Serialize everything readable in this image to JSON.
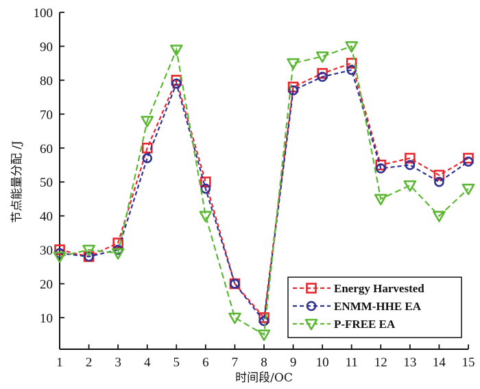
{
  "chart_data": {
    "type": "line",
    "title": "",
    "xlabel": "时间段/OC",
    "ylabel": "节点能量分配 /J",
    "x": [
      1,
      2,
      3,
      4,
      5,
      6,
      7,
      8,
      9,
      10,
      11,
      12,
      13,
      14,
      15
    ],
    "xlim": [
      1,
      15
    ],
    "ylim": [
      1,
      100
    ],
    "xticks": [
      "1",
      "2",
      "3",
      "4",
      "5",
      "6",
      "7",
      "8",
      "9",
      "10",
      "11",
      "12",
      "13",
      "14",
      "15"
    ],
    "yticks": [
      "10",
      "20",
      "30",
      "40",
      "50",
      "60",
      "70",
      "80",
      "90",
      "100"
    ],
    "ytick_values": [
      10,
      20,
      30,
      40,
      50,
      60,
      70,
      80,
      90,
      100
    ],
    "grid": false,
    "legend_position": "bottom-right",
    "series": [
      {
        "name": "Energy Harvested",
        "color": "#e8262b",
        "marker": "square",
        "linestyle": "dashed",
        "values": [
          30,
          28,
          32,
          60,
          80,
          50,
          20,
          10,
          78,
          82,
          85,
          55,
          57,
          52,
          57
        ]
      },
      {
        "name": "ENMM-HHE EA",
        "color": "#2e3192",
        "marker": "circle",
        "linestyle": "dashed",
        "values": [
          29,
          28,
          30,
          57,
          79,
          48,
          20,
          9,
          77,
          81,
          83,
          54,
          55,
          50,
          56
        ]
      },
      {
        "name": "P-FREE EA",
        "color": "#5cb833",
        "marker": "triangle-down",
        "linestyle": "dashed",
        "values": [
          28,
          30,
          29,
          68,
          89,
          40,
          10,
          5,
          85,
          87,
          90,
          45,
          49,
          40,
          48
        ]
      }
    ]
  }
}
